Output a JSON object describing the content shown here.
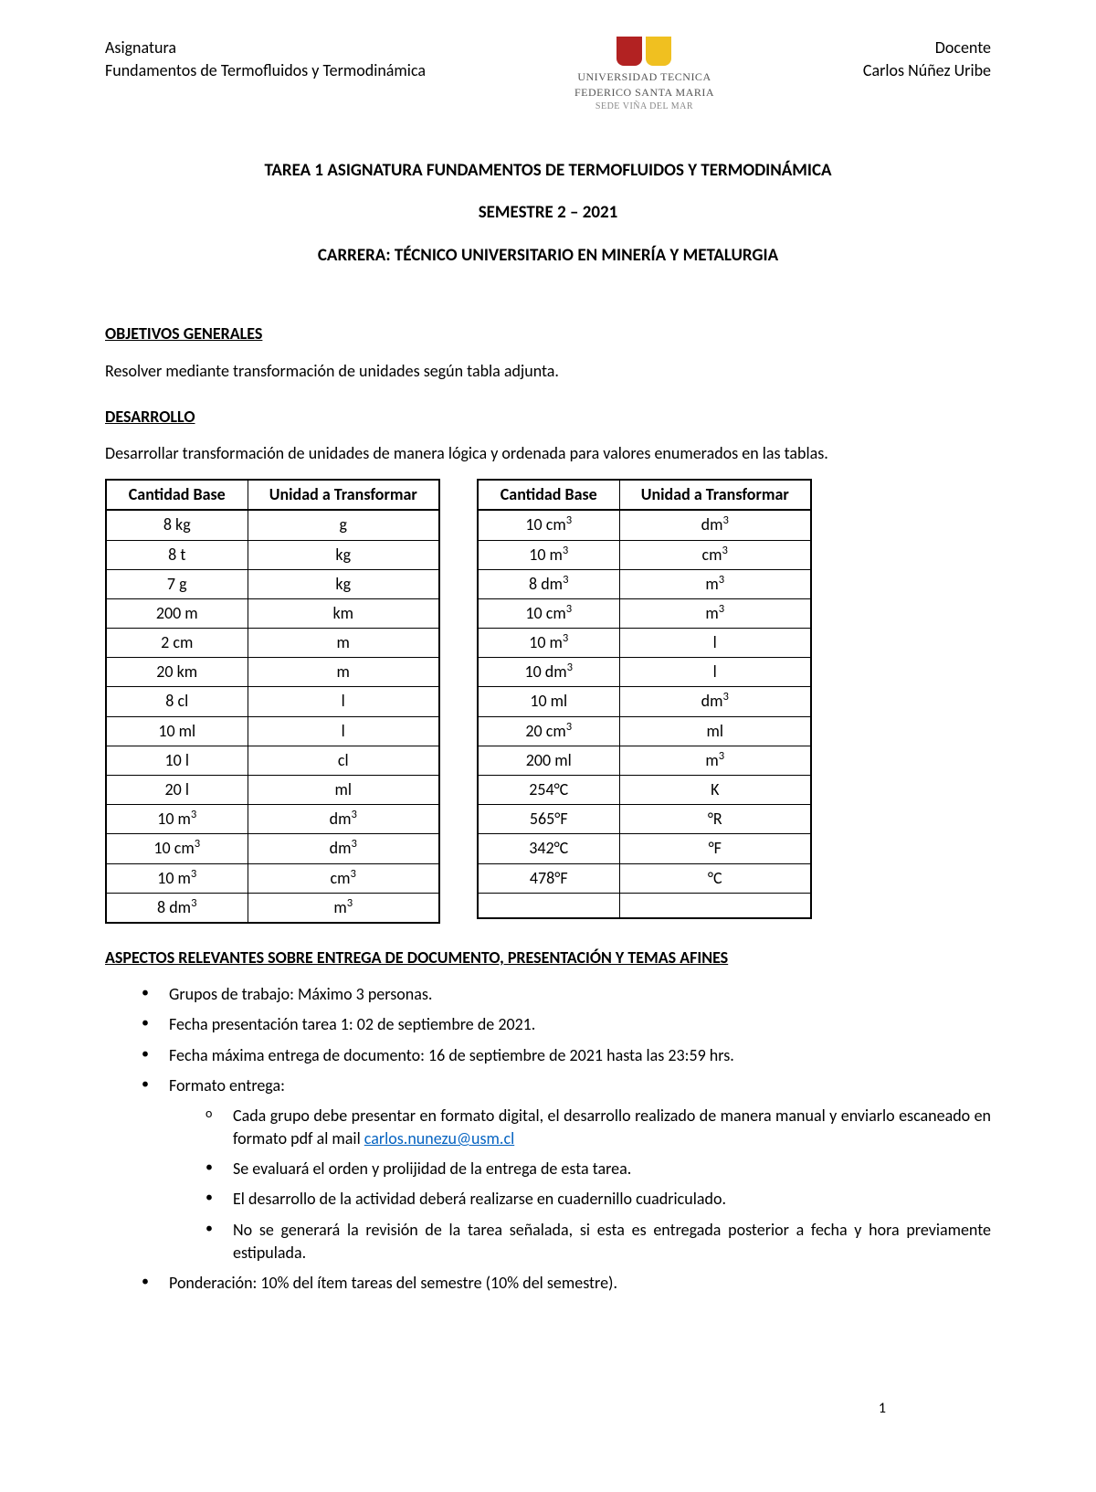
{
  "header": {
    "subject_label": "Asignatura",
    "subject_name": "Fundamentos de Termofluidos y Termodinámica",
    "teacher_label": "Docente",
    "teacher_name": "Carlos Núñez Uribe",
    "university_line1": "UNIVERSIDAD TECNICA",
    "university_line2": "FEDERICO SANTA MARIA",
    "campus": "SEDE VIÑA DEL MAR"
  },
  "title": {
    "line1": "TAREA 1 ASIGNATURA FUNDAMENTOS DE TERMOFLUIDOS Y TERMODINÁMICA",
    "line2": "SEMESTRE 2 – 2021",
    "line3": "CARRERA: TÉCNICO UNIVERSITARIO EN MINERÍA Y METALURGIA"
  },
  "sections": {
    "objetivos_heading": "OBJETIVOS GENERALES",
    "objetivos_body": "Resolver mediante transformación de unidades según tabla adjunta.",
    "desarrollo_heading": "DESARROLLO",
    "desarrollo_body": "Desarrollar transformación de unidades de manera lógica y ordenada para valores enumerados en las tablas.",
    "aspectos_heading": "ASPECTOS RELEVANTES SOBRE ENTREGA DE DOCUMENTO, PRESENTACIÓN Y TEMAS AFINES"
  },
  "table_headers": {
    "col1": "Cantidad Base",
    "col2": "Unidad a Transformar"
  },
  "table1": [
    {
      "base": "8 kg",
      "to": "g"
    },
    {
      "base": "8 t",
      "to": "kg"
    },
    {
      "base": "7 g",
      "to": "kg"
    },
    {
      "base": "200 m",
      "to": "km"
    },
    {
      "base": "2 cm",
      "to": "m"
    },
    {
      "base": "20 km",
      "to": "m"
    },
    {
      "base": "8 cl",
      "to": "l"
    },
    {
      "base": "10 ml",
      "to": "l"
    },
    {
      "base": "10 l",
      "to": "cl"
    },
    {
      "base": "20 l",
      "to": "ml"
    },
    {
      "base": "10 m³",
      "to": "dm³"
    },
    {
      "base": "10 cm³",
      "to": "dm³"
    },
    {
      "base": "10 m³",
      "to": "cm³"
    },
    {
      "base": "8 dm³",
      "to": "m³"
    }
  ],
  "table2": [
    {
      "base": "10 cm³",
      "to": "dm³"
    },
    {
      "base": "10 m³",
      "to": "cm³"
    },
    {
      "base": "8 dm³",
      "to": "m³"
    },
    {
      "base": "10 cm³",
      "to": "m³"
    },
    {
      "base": "10 m³",
      "to": "l"
    },
    {
      "base": "10 dm³",
      "to": "l"
    },
    {
      "base": "10 ml",
      "to": "dm³"
    },
    {
      "base": "20 cm³",
      "to": "ml"
    },
    {
      "base": "200 ml",
      "to": "m³"
    },
    {
      "base": "254°C",
      "to": "K"
    },
    {
      "base": "565°F",
      "to": "°R"
    },
    {
      "base": "342°C",
      "to": "°F"
    },
    {
      "base": "478°F",
      "to": "°C"
    },
    {
      "base": "",
      "to": ""
    }
  ],
  "bullets": {
    "b1": "Grupos de trabajo: Máximo 3 personas.",
    "b2": "Fecha presentación tarea 1: 02 de septiembre de 2021.",
    "b3": "Fecha máxima entrega de documento: 16 de septiembre de 2021 hasta las 23:59 hrs.",
    "b4": "Formato entrega:",
    "b4_1a": "Cada grupo debe presentar en formato digital, el desarrollo realizado de manera manual y enviarlo escaneado en formato pdf al mail ",
    "b4_1_email": "carlos.nunezu@usm.cl",
    "b4_2": "Se evaluará el orden y prolijidad de la entrega de esta tarea.",
    "b4_3": "El desarrollo de la actividad deberá realizarse en cuadernillo cuadriculado.",
    "b4_4": "No se generará la revisión de la tarea señalada, si esta es entregada posterior a fecha y hora previamente estipulada.",
    "b5": "Ponderación: 10% del ítem tareas del semestre (10% del semestre)."
  },
  "page_number": "1",
  "colors": {
    "text": "#000000",
    "link": "#0563c1",
    "shield_red": "#b22222",
    "shield_yellow": "#f0c020",
    "university_gray": "#555555",
    "campus_gray": "#888888"
  }
}
